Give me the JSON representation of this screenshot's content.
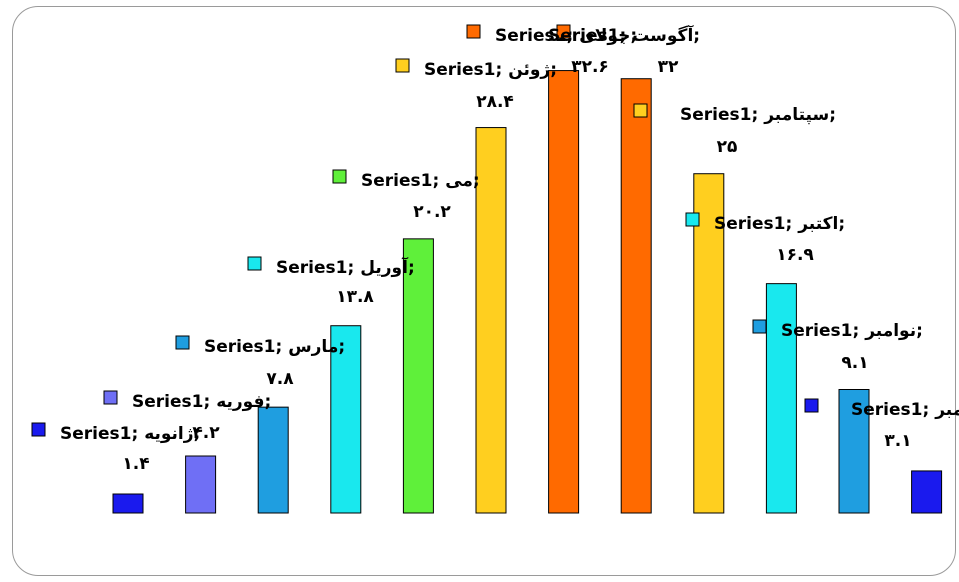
{
  "chart_data": {
    "type": "bar",
    "series": [
      {
        "name": "Series1",
        "values": [
          1.4,
          4.2,
          7.8,
          13.8,
          20.2,
          28.4,
          32.6,
          32.0,
          25,
          16.9,
          9.1,
          3.1
        ],
        "value_labels": [
          "١.۴",
          "۴.٢",
          "٧.٨",
          "١٣.٨",
          "٢٠.٢",
          "٢٨.۴",
          "٣٢.۶",
          "٣٢",
          "٢۵",
          "١۶.٩",
          "٩.١",
          "٣.١"
        ]
      }
    ],
    "categories": [
      "ژانویه",
      "فوریه",
      "مارس",
      "آوریل",
      "می",
      "ژوئن",
      "جولای",
      "آگوست",
      "سپتامبر",
      "اکتبر",
      "نوامبر",
      "دسامبر"
    ],
    "colors": [
      "#1a1aee",
      "#6f6ff5",
      "#1f9ee0",
      "#19e8ee",
      "#5ff03a",
      "#ffcf1f",
      "#ff6a00",
      "#ff6a00",
      "#ffcf1f",
      "#19e8ee",
      "#1f9ee0",
      "#1a1aee"
    ],
    "ylim": [
      0,
      35
    ],
    "grid": false,
    "legend": "none",
    "label_format": "series; category; value"
  }
}
